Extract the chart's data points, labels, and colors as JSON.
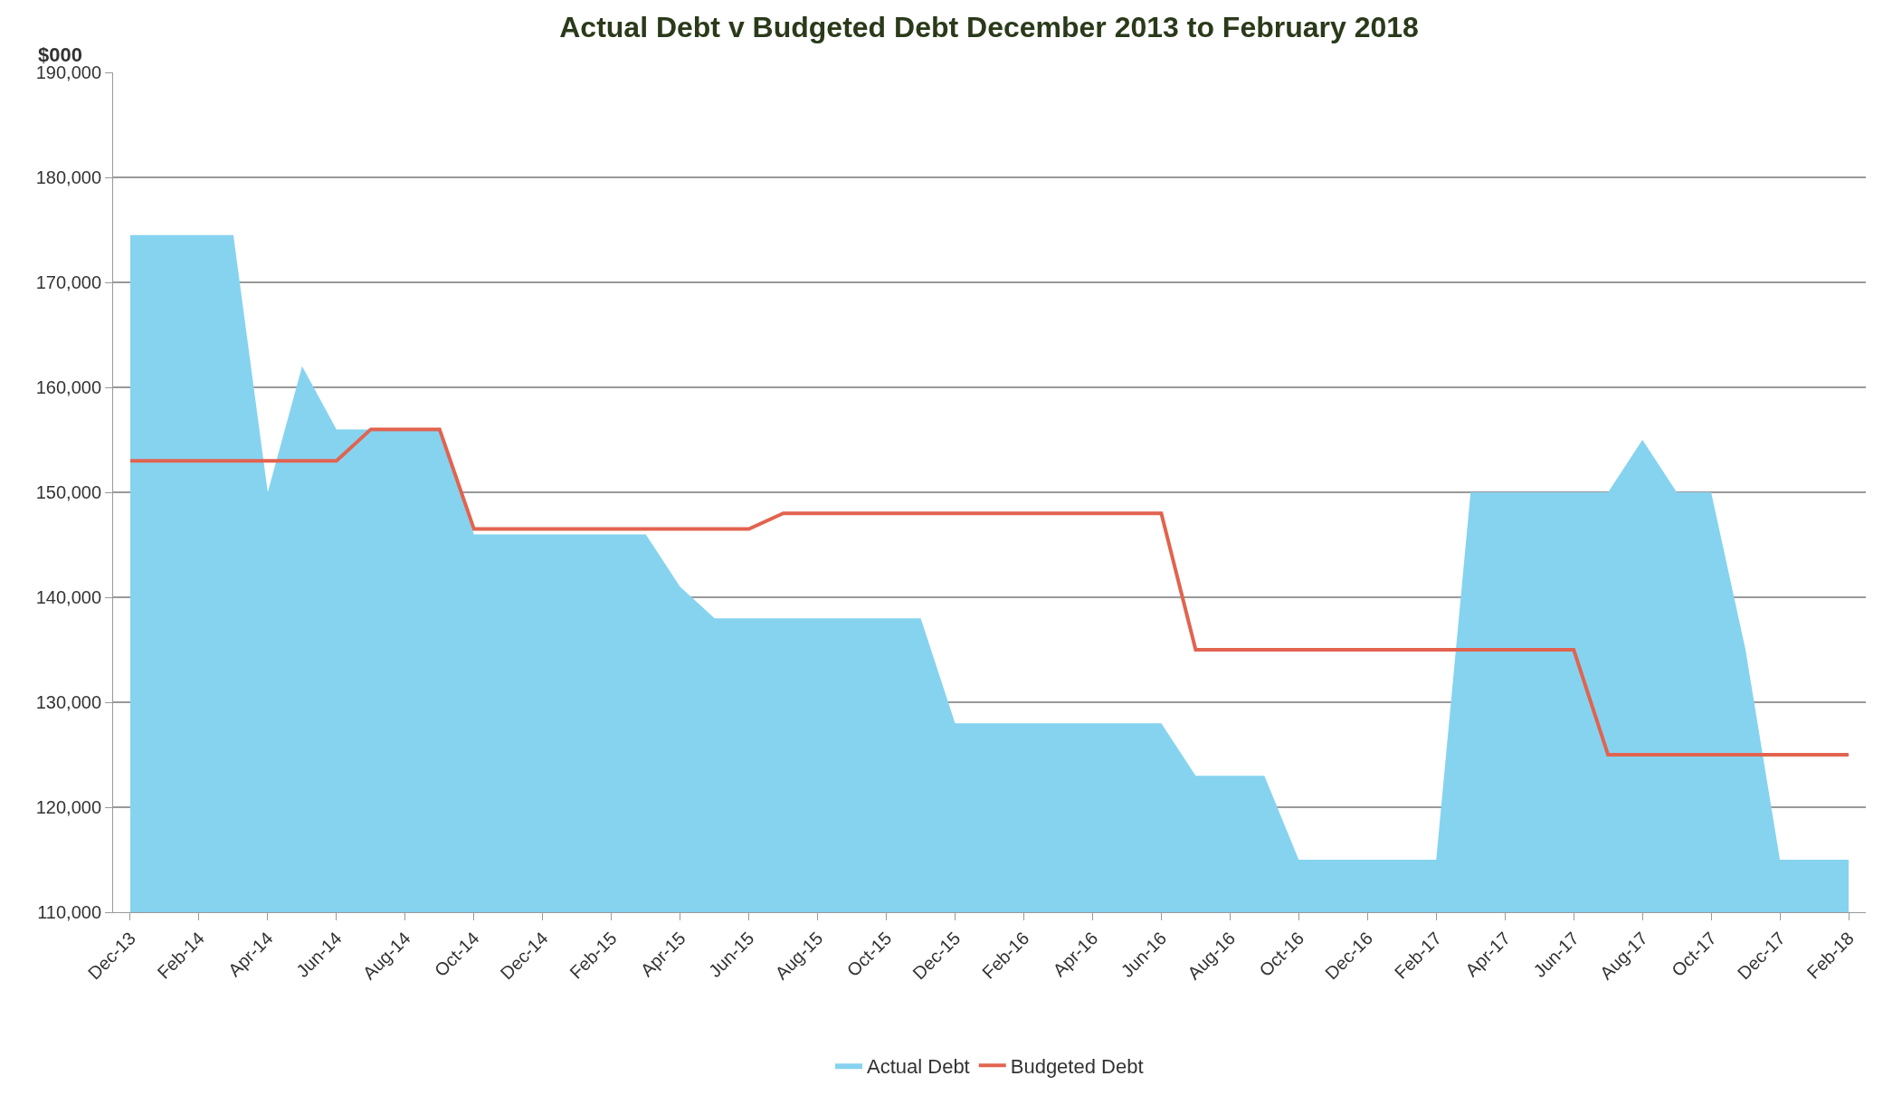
{
  "chart_data": {
    "type": "area",
    "title": "Actual Debt v Budgeted Debt December 2013 to February 2018",
    "ylabel": "$000",
    "categories": [
      "Dec-13",
      null,
      "Feb-14",
      null,
      "Apr-14",
      null,
      "Jun-14",
      null,
      "Aug-14",
      null,
      "Oct-14",
      null,
      "Dec-14",
      null,
      "Feb-15",
      null,
      "Apr-15",
      null,
      "Jun-15",
      null,
      "Aug-15",
      null,
      "Oct-15",
      null,
      "Dec-15",
      null,
      "Feb-16",
      null,
      "Apr-16",
      null,
      "Jun-16",
      null,
      "Aug-16",
      null,
      "Oct-16",
      null,
      "Dec-16",
      null,
      "Feb-17",
      null,
      "Apr-17",
      null,
      "Jun-17",
      null,
      "Aug-17",
      null,
      "Oct-17",
      null,
      "Dec-17",
      null,
      "Feb-18"
    ],
    "series": [
      {
        "name": "Actual Debt",
        "color": "#86d3f0",
        "values": [
          174500,
          174500,
          174500,
          174500,
          150000,
          162000,
          156000,
          156000,
          156000,
          156000,
          146000,
          146000,
          146000,
          146000,
          146000,
          146000,
          141000,
          138000,
          138000,
          138000,
          138000,
          138000,
          138000,
          138000,
          128000,
          128000,
          128000,
          128000,
          128000,
          128000,
          128000,
          123000,
          123000,
          123000,
          115000,
          115000,
          115000,
          115000,
          115000,
          150000,
          150000,
          150000,
          150000,
          150000,
          155000,
          150000,
          150000,
          135000,
          115000,
          115000,
          115000
        ]
      },
      {
        "name": "Budgeted Debt",
        "type": "line",
        "color": "#e2634f",
        "values": [
          153000,
          153000,
          153000,
          153000,
          153000,
          153000,
          153000,
          156000,
          156000,
          156000,
          146500,
          146500,
          146500,
          146500,
          146500,
          146500,
          146500,
          146500,
          146500,
          148000,
          148000,
          148000,
          148000,
          148000,
          148000,
          148000,
          148000,
          148000,
          148000,
          148000,
          148000,
          135000,
          135000,
          135000,
          135000,
          135000,
          135000,
          135000,
          135000,
          135000,
          135000,
          135000,
          135000,
          125000,
          125000,
          125000,
          125000,
          125000,
          125000,
          125000,
          125000
        ]
      }
    ],
    "ylim": [
      110000,
      190000
    ],
    "yticks": [
      {
        "value": 110000,
        "label": "110,000"
      },
      {
        "value": 120000,
        "label": "120,000"
      },
      {
        "value": 130000,
        "label": "130,000"
      },
      {
        "value": 140000,
        "label": "140,000"
      },
      {
        "value": 150000,
        "label": "150,000"
      },
      {
        "value": 160000,
        "label": "160,000"
      },
      {
        "value": 170000,
        "label": "170,000"
      },
      {
        "value": 180000,
        "label": "180,000"
      },
      {
        "value": 190000,
        "label": "190,000"
      }
    ],
    "grid": "y",
    "legend": "bottom",
    "marker": "none",
    "line_style": "solid"
  }
}
